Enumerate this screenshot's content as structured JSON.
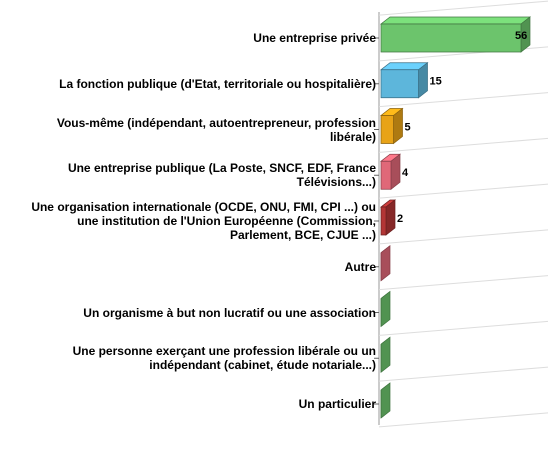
{
  "chart_data": {
    "type": "bar3d",
    "categories": [
      "Une entreprise privée",
      "La fonction publique (d'Etat, territoriale ou hospitalière)",
      "Vous-même (indépendant, autoentrepreneur, profession libérale)",
      "Une entreprise publique (La Poste, SNCF, EDF, France Télévisions...)",
      "Une organisation internationale (OCDE, ONU, FMI, CPI ...) ou une institution de l'Union Européenne (Commission, Parlement, BCE, CJUE ...)",
      "Autre",
      "Un organisme à but non lucratif ou une association",
      "Une personne exerçant une profession libérale ou un indépendant (cabinet, étude notariale...)",
      "Un particulier"
    ],
    "values": [
      56,
      15,
      5,
      4,
      2,
      0,
      0,
      0,
      0
    ],
    "value_labels": [
      "56",
      "15",
      "5",
      "4",
      "2",
      null,
      null,
      null,
      null
    ],
    "colors": [
      "#6cc46c",
      "#5db6db",
      "#e8a317",
      "#e06878",
      "#b33535",
      "#e06878",
      "#6cc46c",
      "#6cc46c",
      "#6cc46c"
    ],
    "xlim": [
      0,
      60
    ]
  }
}
